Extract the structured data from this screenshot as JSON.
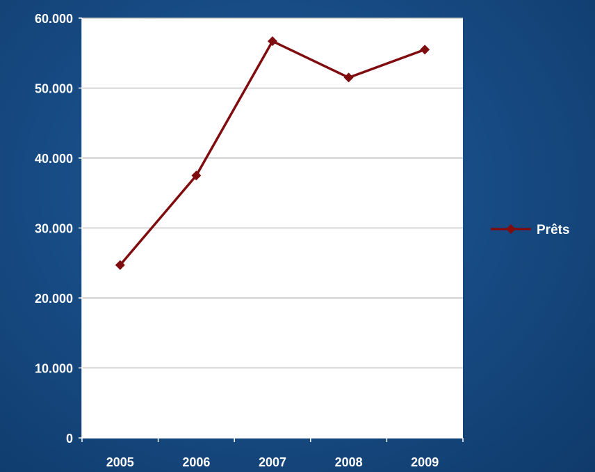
{
  "chart_data": {
    "type": "line",
    "title": "",
    "xlabel": "",
    "ylabel": "",
    "categories": [
      "2005",
      "2006",
      "2007",
      "2008",
      "2009"
    ],
    "series": [
      {
        "name": "Prêts",
        "values": [
          24700,
          37500,
          56700,
          51500,
          55500
        ],
        "color": "#7f0d10"
      }
    ],
    "ylim": [
      0,
      60000
    ],
    "yticks": [
      0,
      10000,
      20000,
      30000,
      40000,
      50000,
      60000
    ],
    "ytick_labels": [
      "0",
      "10.000",
      "20.000",
      "30.000",
      "40.000",
      "50.000",
      "60.000"
    ],
    "grid": true,
    "legend_position": "right",
    "plot_background": "#ffffff",
    "page_background": "#184c85"
  }
}
